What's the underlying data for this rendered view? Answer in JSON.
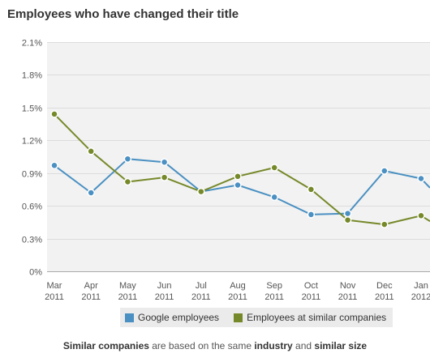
{
  "title": "Employees who have changed their title",
  "chart_data": {
    "type": "line",
    "title": "Employees who have changed their title",
    "x_tick_labels": [
      [
        "Mar",
        "2011"
      ],
      [
        "Apr",
        "2011"
      ],
      [
        "May",
        "2011"
      ],
      [
        "Jun",
        "2011"
      ],
      [
        "Jul",
        "2011"
      ],
      [
        "Aug",
        "2011"
      ],
      [
        "Sep",
        "2011"
      ],
      [
        "Oct",
        "2011"
      ],
      [
        "Nov",
        "2011"
      ],
      [
        "Dec",
        "2011"
      ],
      [
        "Jan",
        "2012"
      ]
    ],
    "x": [
      "Mar 2011",
      "Apr 2011",
      "May 2011",
      "Jun 2011",
      "Jul 2011",
      "Aug 2011",
      "Sep 2011",
      "Oct 2011",
      "Nov 2011",
      "Dec 2011",
      "Jan 2012"
    ],
    "y_tick_labels": [
      "0%",
      "0.3%",
      "0.6%",
      "0.9%",
      "1.2%",
      "1.5%",
      "1.8%",
      "2.1%"
    ],
    "y_ticks": [
      0,
      0.3,
      0.6,
      0.9,
      1.2,
      1.5,
      1.8,
      2.1
    ],
    "ylim": [
      0,
      2.1
    ],
    "grid": true,
    "legend_position": "bottom",
    "series": [
      {
        "name": "Google employees",
        "color": "#4a90c2",
        "values": [
          0.97,
          0.72,
          1.03,
          1.0,
          0.73,
          0.79,
          0.68,
          0.52,
          0.53,
          0.92,
          0.85
        ],
        "continues_past_edge": 0.5
      },
      {
        "name": "Employees at similar companies",
        "color": "#76892a",
        "values": [
          1.44,
          1.1,
          0.82,
          0.86,
          0.73,
          0.87,
          0.95,
          0.75,
          0.47,
          0.43,
          0.51
        ],
        "continues_past_edge": 0.3
      }
    ]
  },
  "legend": [
    {
      "label": "Google employees",
      "color": "#4a90c2"
    },
    {
      "label": "Employees at similar companies",
      "color": "#76892a"
    }
  ],
  "footnote": {
    "part1": "Similar companies",
    "part2": " are based on the same ",
    "part3": "industry",
    "part4": " and ",
    "part5": "similar size"
  }
}
